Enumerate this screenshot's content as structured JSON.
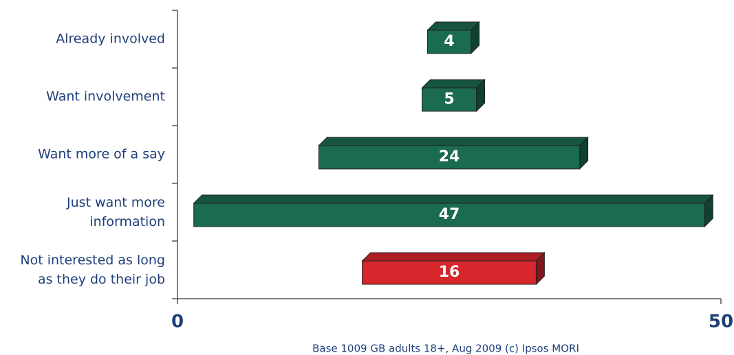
{
  "chart_data": {
    "type": "bar",
    "orientation": "horizontal",
    "alignment": "centered",
    "categories": [
      "Already involved",
      "Want involvement",
      "Want more of a say",
      "Just want more\ninformation",
      "Not interested as long\nas they do their job"
    ],
    "values": [
      4,
      5,
      24,
      47,
      16
    ],
    "colors": [
      "#1b6b4e",
      "#1b6b4e",
      "#1b6b4e",
      "#1b6b4e",
      "#d7262c"
    ],
    "xlim": [
      0,
      50
    ],
    "xticks": [
      0,
      50
    ],
    "footnote": "Base 1009 GB adults 18+, Aug 2009  (c) Ipsos MORI"
  }
}
